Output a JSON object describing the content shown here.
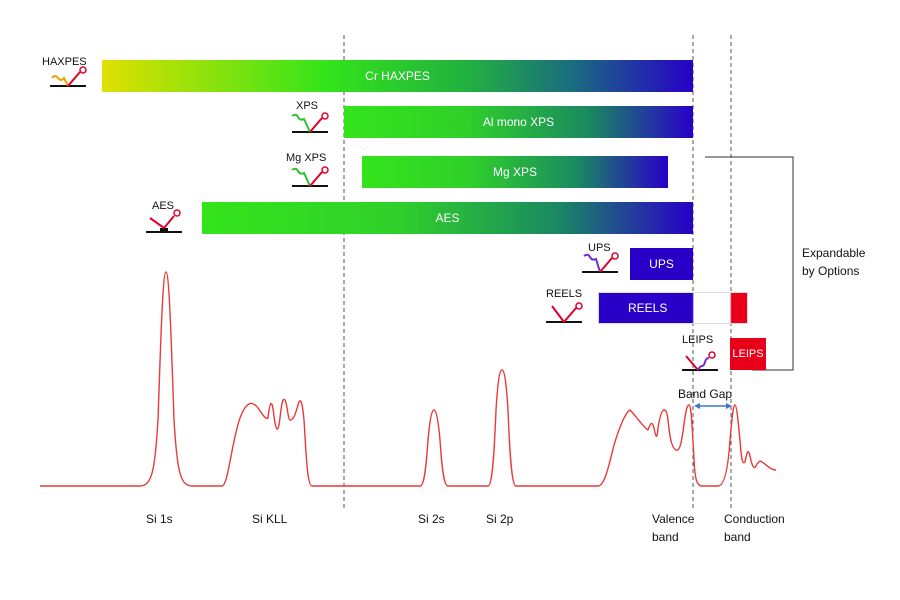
{
  "techniques": [
    {
      "key": "haxpes",
      "tag": "HAXPES",
      "bar_label": "Cr HAXPES"
    },
    {
      "key": "xps",
      "tag": "XPS",
      "bar_label": "Al mono XPS"
    },
    {
      "key": "mgxps",
      "tag": "Mg XPS",
      "bar_label": "Mg XPS"
    },
    {
      "key": "aes",
      "tag": "AES",
      "bar_label": "AES"
    },
    {
      "key": "ups",
      "tag": "UPS",
      "bar_label": "UPS"
    },
    {
      "key": "reels",
      "tag": "REELS",
      "bar_label": "REELS"
    },
    {
      "key": "leips",
      "tag": "LEIPS",
      "bar_label": "LEIPS"
    }
  ],
  "bracket_label_line1": "Expandable",
  "bracket_label_line2": "by Options",
  "band_gap_label": "Band Gap",
  "peaks": [
    {
      "key": "si1s",
      "label": "Si 1s"
    },
    {
      "key": "sikll",
      "label": "Si KLL"
    },
    {
      "key": "si2s",
      "label": "Si 2s"
    },
    {
      "key": "si2p",
      "label": "Si 2p"
    }
  ],
  "valence": {
    "line1": "Valence",
    "line2": "band"
  },
  "conduction": {
    "line1": "Conduction",
    "line2": "band"
  },
  "colors": {
    "spectrum": "#e83a3a",
    "bar_start": "#d9e000",
    "bar_green": "#33e41a",
    "bar_blue": "#2800c8",
    "bar_red": "#e8001a",
    "bracket": "#333333",
    "band_arrow": "#3a78c8"
  }
}
